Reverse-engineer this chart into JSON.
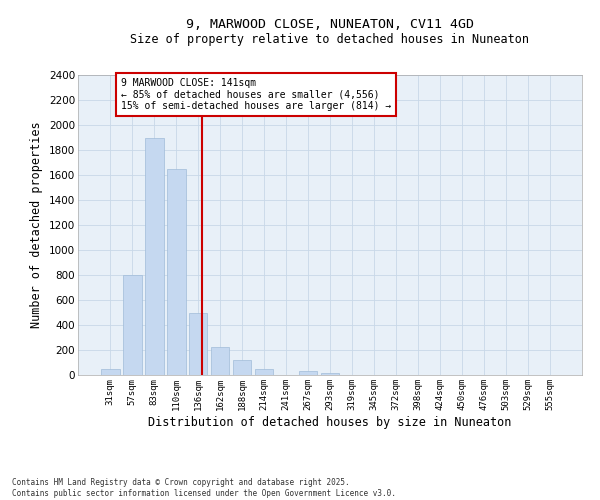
{
  "title_line1": "9, MARWOOD CLOSE, NUNEATON, CV11 4GD",
  "title_line2": "Size of property relative to detached houses in Nuneaton",
  "xlabel": "Distribution of detached houses by size in Nuneaton",
  "ylabel": "Number of detached properties",
  "categories": [
    "31sqm",
    "57sqm",
    "83sqm",
    "110sqm",
    "136sqm",
    "162sqm",
    "188sqm",
    "214sqm",
    "241sqm",
    "267sqm",
    "293sqm",
    "319sqm",
    "345sqm",
    "372sqm",
    "398sqm",
    "424sqm",
    "450sqm",
    "476sqm",
    "503sqm",
    "529sqm",
    "555sqm"
  ],
  "values": [
    50,
    800,
    1900,
    1650,
    500,
    225,
    120,
    50,
    0,
    30,
    20,
    0,
    0,
    0,
    0,
    0,
    0,
    0,
    0,
    0,
    0
  ],
  "bar_color": "#c5d8f0",
  "bar_edge_color": "#a0bcd8",
  "ylim": [
    0,
    2400
  ],
  "yticks": [
    0,
    200,
    400,
    600,
    800,
    1000,
    1200,
    1400,
    1600,
    1800,
    2000,
    2200,
    2400
  ],
  "grid_color": "#c8d8e8",
  "background_color": "#e8f0f8",
  "annotation_line1": "9 MARWOOD CLOSE: 141sqm",
  "annotation_line2": "← 85% of detached houses are smaller (4,556)",
  "annotation_line3": "15% of semi-detached houses are larger (814) →",
  "vline_color": "#cc0000",
  "annotation_box_color": "#cc0000",
  "footer_line1": "Contains HM Land Registry data © Crown copyright and database right 2025.",
  "footer_line2": "Contains public sector information licensed under the Open Government Licence v3.0."
}
